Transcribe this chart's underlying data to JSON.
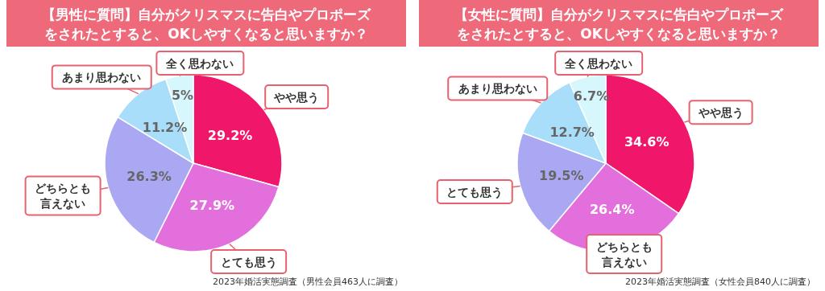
{
  "chart_data": [
    {
      "type": "pie",
      "title": "【男性に質問】自分がクリスマスに告白やプロポーズをされたとすると、OKしやすくなると思いますか？",
      "categories": [
        "やや思う",
        "とても思う",
        "どちらとも言えない",
        "あまり思わない",
        "全く思わない"
      ],
      "values": [
        29.2,
        27.9,
        26.3,
        11.2,
        5
      ],
      "value_labels": [
        "29.2%",
        "27.9%",
        "26.3%",
        "11.2%",
        "5%"
      ],
      "colors": [
        "#f0176b",
        "#e26fdc",
        "#aaa8f2",
        "#a9defa",
        "#d6f7fb"
      ],
      "legend": false,
      "annotations": [
        "2023年婚活実態調査（男性会員463人に調査）"
      ]
    },
    {
      "type": "pie",
      "title": "【女性に質問】自分がクリスマスに告白やプロポーズをされたとすると、OKしやすくなると思いますか？",
      "categories": [
        "やや思う",
        "どちらとも言えない",
        "とても思う",
        "あまり思わない",
        "全く思わない"
      ],
      "values": [
        34.6,
        26.4,
        19.5,
        12.7,
        6.7
      ],
      "value_labels": [
        "34.6%",
        "26.4%",
        "19.5%",
        "12.7%",
        "6.7%"
      ],
      "colors": [
        "#f0176b",
        "#e26fdc",
        "#aaa8f2",
        "#a9defa",
        "#d6f7fb"
      ],
      "legend": false,
      "annotations": [
        "2023年婚活実態調査（女性会員840人に調査）"
      ]
    }
  ]
}
